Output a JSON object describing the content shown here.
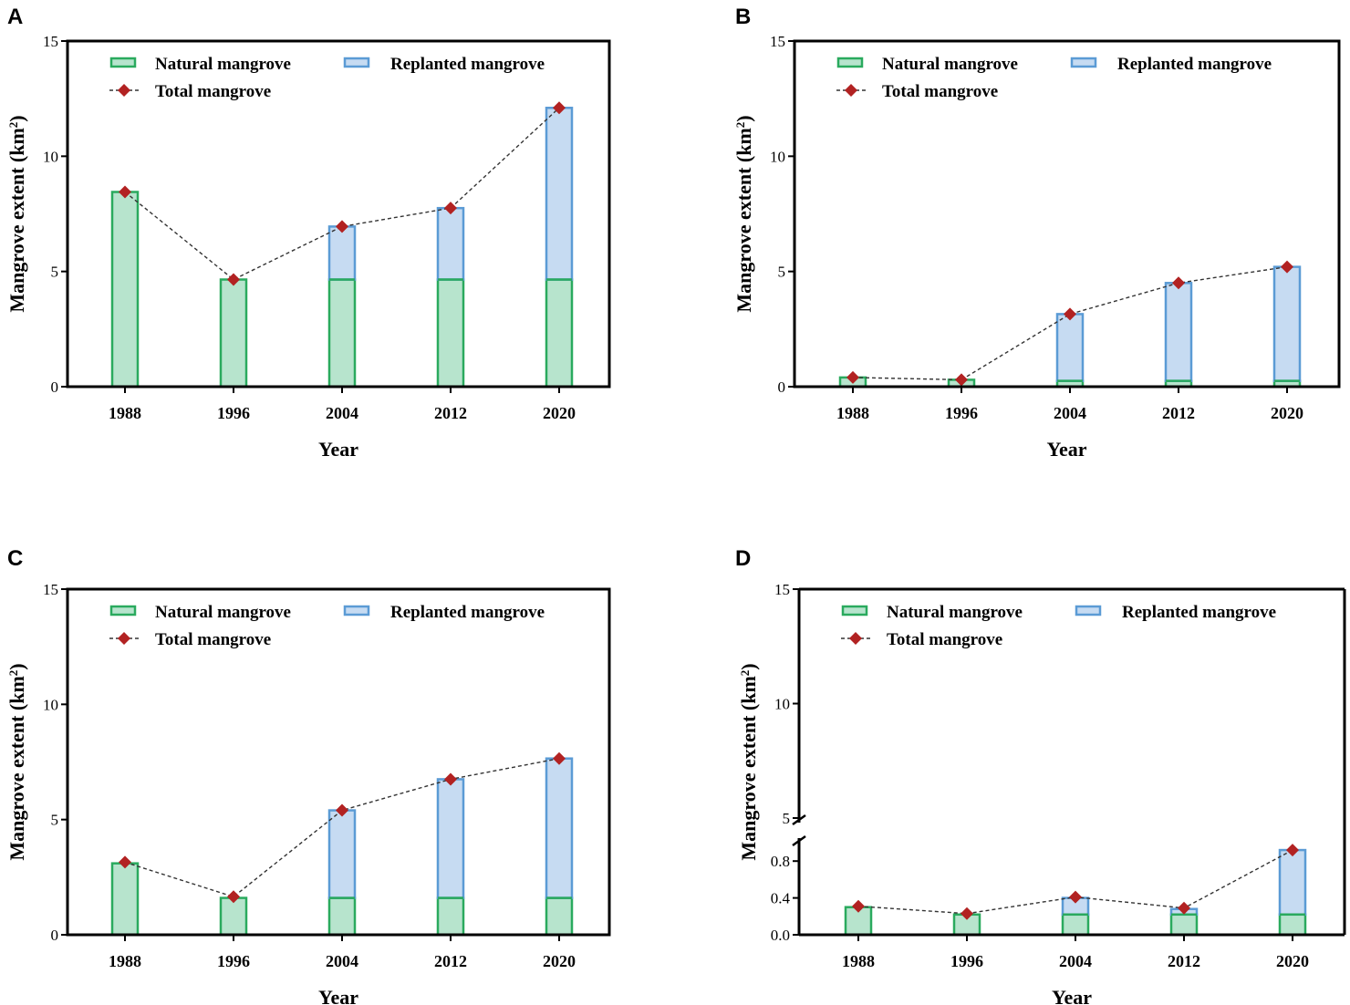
{
  "chart_data": [
    {
      "panel": "A",
      "type": "bar",
      "stacked": true,
      "categories": [
        "1988",
        "1996",
        "2004",
        "2012",
        "2020"
      ],
      "series": [
        {
          "name": "Natural mangrove",
          "values": [
            8.45,
            4.65,
            4.65,
            4.65,
            4.65
          ],
          "color": "#2aaa5e",
          "fill": "#b7e4cd"
        },
        {
          "name": "Replanted mangrove",
          "values": [
            0,
            0,
            2.3,
            3.1,
            7.45
          ],
          "color": "#5b9bd5",
          "fill": "#c6dbf2"
        }
      ],
      "line": {
        "name": "Total mangrove",
        "values": [
          8.45,
          4.65,
          6.95,
          7.75,
          12.1
        ],
        "color": "#b22222"
      },
      "xlabel": "Year",
      "ylabel": "Mangrove extent (km",
      "ylabel_sup": "2",
      "ylabel_close": ")",
      "ylim": [
        0,
        15
      ],
      "yticks": [
        0,
        5,
        10,
        15
      ],
      "ytick_labels": [
        "0",
        "5",
        "10",
        "15"
      ],
      "legend_position": "top"
    },
    {
      "panel": "B",
      "type": "bar",
      "stacked": true,
      "categories": [
        "1988",
        "1996",
        "2004",
        "2012",
        "2020"
      ],
      "series": [
        {
          "name": "Natural mangrove",
          "values": [
            0.4,
            0.3,
            0.25,
            0.25,
            0.25
          ],
          "color": "#2aaa5e",
          "fill": "#b7e4cd"
        },
        {
          "name": "Replanted mangrove",
          "values": [
            0,
            0,
            2.9,
            4.25,
            4.95
          ],
          "color": "#5b9bd5",
          "fill": "#c6dbf2"
        }
      ],
      "line": {
        "name": "Total mangrove",
        "values": [
          0.4,
          0.3,
          3.15,
          4.5,
          5.2
        ],
        "color": "#b22222"
      },
      "xlabel": "Year",
      "ylabel": "Mangrove extent (km",
      "ylabel_sup": "2",
      "ylabel_close": ")",
      "ylim": [
        0,
        15
      ],
      "yticks": [
        0,
        5,
        10,
        15
      ],
      "ytick_labels": [
        "0",
        "5",
        "10",
        "15"
      ],
      "legend_position": "top"
    },
    {
      "panel": "C",
      "type": "bar",
      "stacked": true,
      "categories": [
        "1988",
        "1996",
        "2004",
        "2012",
        "2020"
      ],
      "series": [
        {
          "name": "Natural mangrove",
          "values": [
            3.1,
            1.6,
            1.6,
            1.6,
            1.6
          ],
          "color": "#2aaa5e",
          "fill": "#b7e4cd"
        },
        {
          "name": "Replanted mangrove",
          "values": [
            0,
            0,
            3.8,
            5.15,
            6.05
          ],
          "color": "#5b9bd5",
          "fill": "#c6dbf2"
        }
      ],
      "line": {
        "name": "Total mangrove",
        "values": [
          3.15,
          1.65,
          5.4,
          6.75,
          7.65
        ],
        "color": "#b22222"
      },
      "xlabel": "Year",
      "ylabel": "Mangrove extent (km",
      "ylabel_sup": "2",
      "ylabel_close": ")",
      "ylim": [
        0,
        15
      ],
      "yticks": [
        0,
        5,
        10,
        15
      ],
      "ytick_labels": [
        "0",
        "5",
        "10",
        "15"
      ],
      "legend_position": "top"
    },
    {
      "panel": "D",
      "type": "bar",
      "stacked": true,
      "broken_axis": true,
      "categories": [
        "1988",
        "1996",
        "2004",
        "2012",
        "2020"
      ],
      "series": [
        {
          "name": "Natural mangrove",
          "values": [
            0.3,
            0.22,
            0.22,
            0.22,
            0.22
          ],
          "color": "#2aaa5e",
          "fill": "#b7e4cd"
        },
        {
          "name": "Replanted mangrove",
          "values": [
            0,
            0,
            0.18,
            0.06,
            0.7
          ],
          "color": "#5b9bd5",
          "fill": "#c6dbf2"
        }
      ],
      "line": {
        "name": "Total mangrove",
        "values": [
          0.31,
          0.23,
          0.41,
          0.29,
          0.92
        ],
        "color": "#b22222"
      },
      "xlabel": "Year",
      "ylabel": "Mangrove extent (km",
      "ylabel_sup": "2",
      "ylabel_close": ")",
      "ylim": [
        0,
        15
      ],
      "lower_segment": [
        0,
        1.0
      ],
      "upper_segment": [
        5,
        15
      ],
      "yticks": [
        0,
        0.4,
        0.8,
        5,
        10,
        15
      ],
      "ytick_labels": [
        "0.0",
        "0.4",
        "0.8",
        "5",
        "10",
        "15"
      ],
      "legend_position": "top"
    }
  ]
}
